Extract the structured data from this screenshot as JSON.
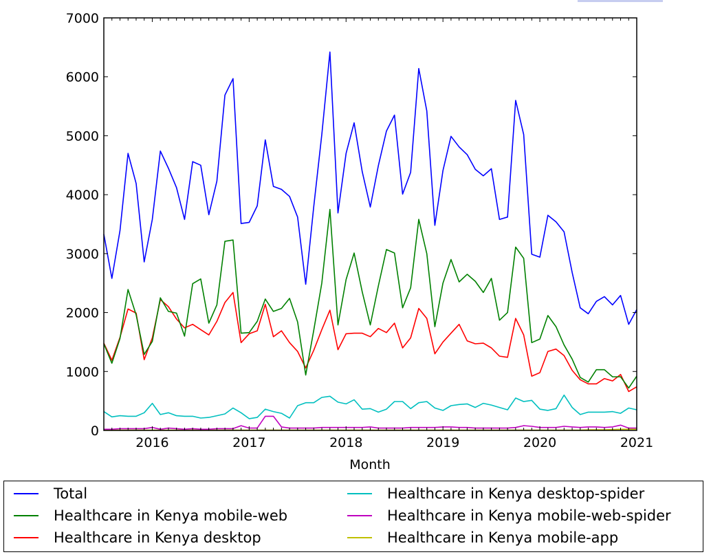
{
  "chart_data": {
    "type": "line",
    "title": "",
    "xlabel": "Month",
    "ylabel": "",
    "ylim": [
      0,
      7000
    ],
    "yticks": [
      0,
      1000,
      2000,
      3000,
      4000,
      5000,
      6000,
      7000
    ],
    "ytick_labels": [
      "0",
      "1000",
      "2000",
      "3000",
      "4000",
      "5000",
      "6000",
      "7000"
    ],
    "xlim": [
      "2015-07",
      "2021-01"
    ],
    "xtick_labels": [
      "2016",
      "2017",
      "2018",
      "2019",
      "2020",
      "2021"
    ],
    "x_start": "2015-07",
    "x_step": "month",
    "legend_position": "below",
    "grid": false,
    "series": [
      {
        "name": "Total",
        "color": "#0000ff",
        "values": [
          3330,
          2580,
          3390,
          4700,
          4190,
          2860,
          3580,
          4740,
          4450,
          4120,
          3580,
          4560,
          4500,
          3660,
          4230,
          5690,
          5970,
          3510,
          3530,
          3810,
          4930,
          4140,
          4090,
          3970,
          3620,
          2480,
          3800,
          5020,
          6420,
          3690,
          4700,
          5220,
          4390,
          3790,
          4490,
          5080,
          5350,
          4010,
          4380,
          6140,
          5420,
          3480,
          4410,
          4990,
          4810,
          4680,
          4430,
          4320,
          4440,
          3580,
          3620,
          5600,
          5020,
          2990,
          2940,
          3650,
          3540,
          3370,
          2680,
          2080,
          1980,
          2190,
          2270,
          2130,
          2290,
          1800,
          2050
        ]
      },
      {
        "name": "Healthcare in Kenya mobile-web",
        "color": "#008000",
        "values": [
          1470,
          1140,
          1560,
          2390,
          1960,
          1290,
          1510,
          2250,
          2020,
          1990,
          1600,
          2490,
          2570,
          1820,
          2130,
          3210,
          3230,
          1650,
          1660,
          1850,
          2230,
          2020,
          2070,
          2240,
          1840,
          940,
          1700,
          2500,
          3750,
          1790,
          2560,
          3010,
          2350,
          1790,
          2450,
          3070,
          3010,
          2080,
          2420,
          3580,
          3000,
          1760,
          2500,
          2900,
          2520,
          2650,
          2530,
          2340,
          2580,
          1870,
          2000,
          3110,
          2920,
          1490,
          1550,
          1950,
          1760,
          1450,
          1210,
          900,
          820,
          1030,
          1030,
          910,
          910,
          720,
          920
        ]
      },
      {
        "name": "Healthcare in Kenya desktop",
        "color": "#ff0000",
        "values": [
          1480,
          1190,
          1580,
          2060,
          1990,
          1200,
          1570,
          2220,
          2100,
          1890,
          1740,
          1800,
          1710,
          1620,
          1850,
          2170,
          2340,
          1490,
          1640,
          1690,
          2140,
          1590,
          1690,
          1490,
          1340,
          1060,
          1360,
          1710,
          2040,
          1370,
          1640,
          1650,
          1650,
          1590,
          1730,
          1660,
          1820,
          1400,
          1570,
          2070,
          1900,
          1300,
          1500,
          1650,
          1800,
          1520,
          1470,
          1480,
          1400,
          1260,
          1240,
          1900,
          1620,
          920,
          980,
          1340,
          1380,
          1270,
          1020,
          860,
          790,
          790,
          880,
          840,
          950,
          660,
          740
        ]
      },
      {
        "name": "Healthcare in Kenya desktop-spider",
        "color": "#00bfbf",
        "values": [
          320,
          230,
          250,
          240,
          240,
          300,
          460,
          270,
          300,
          250,
          240,
          240,
          210,
          220,
          250,
          280,
          380,
          300,
          200,
          220,
          360,
          320,
          290,
          210,
          420,
          470,
          470,
          560,
          580,
          480,
          450,
          520,
          360,
          370,
          310,
          360,
          490,
          490,
          370,
          470,
          490,
          380,
          340,
          420,
          440,
          450,
          390,
          460,
          430,
          390,
          350,
          550,
          490,
          510,
          360,
          340,
          370,
          600,
          390,
          270,
          310,
          310,
          310,
          320,
          290,
          380,
          350
        ]
      },
      {
        "name": "Healthcare in Kenya mobile-web-spider",
        "color": "#bf00bf",
        "values": [
          20,
          20,
          30,
          30,
          30,
          30,
          50,
          20,
          40,
          30,
          20,
          30,
          20,
          20,
          30,
          30,
          30,
          80,
          40,
          40,
          240,
          240,
          60,
          40,
          40,
          40,
          40,
          50,
          50,
          50,
          50,
          50,
          50,
          60,
          40,
          40,
          40,
          40,
          50,
          50,
          50,
          50,
          60,
          60,
          50,
          50,
          40,
          40,
          40,
          40,
          40,
          50,
          80,
          70,
          50,
          50,
          50,
          70,
          60,
          50,
          60,
          60,
          50,
          60,
          90,
          40,
          40
        ]
      },
      {
        "name": "Healthcare in Kenya mobile-app",
        "color": "#bfbf00",
        "values": [
          5,
          5,
          5,
          5,
          5,
          5,
          5,
          5,
          5,
          5,
          5,
          5,
          5,
          5,
          5,
          5,
          5,
          5,
          5,
          5,
          5,
          5,
          5,
          5,
          5,
          5,
          5,
          5,
          5,
          5,
          5,
          5,
          5,
          5,
          5,
          5,
          5,
          5,
          5,
          5,
          5,
          5,
          5,
          5,
          5,
          5,
          5,
          5,
          5,
          5,
          5,
          5,
          5,
          5,
          5,
          5,
          5,
          5,
          5,
          5,
          10,
          10,
          10,
          15,
          20,
          20,
          20
        ]
      }
    ]
  }
}
